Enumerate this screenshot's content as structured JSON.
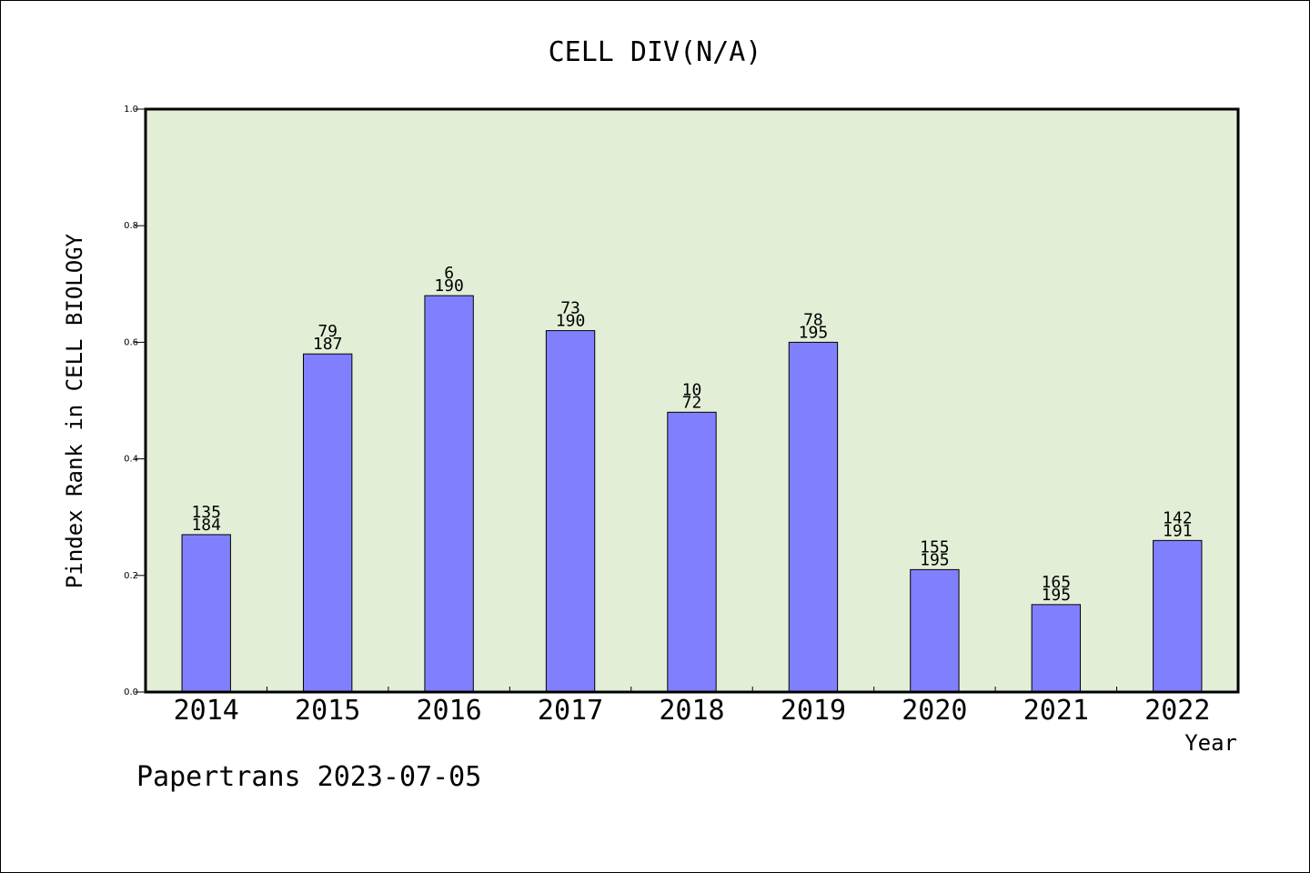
{
  "chart_data": {
    "type": "bar",
    "title": "CELL DIV(N/A)",
    "xlabel": "Year",
    "ylabel": "Pindex Rank in CELL BIOLOGY",
    "categories": [
      "2014",
      "2015",
      "2016",
      "2017",
      "2018",
      "2019",
      "2020",
      "2021",
      "2022"
    ],
    "values": [
      0.27,
      0.58,
      0.68,
      0.62,
      0.48,
      0.6,
      0.21,
      0.15,
      0.26
    ],
    "label_top": [
      "135",
      "79",
      "6",
      "73",
      "10",
      "78",
      "155",
      "165",
      "142"
    ],
    "label_bottom": [
      "184",
      "187",
      "190",
      "190",
      "72",
      "195",
      "195",
      "195",
      "191"
    ],
    "ylim": [
      0,
      1.0
    ],
    "yticks": [
      "0.0",
      "0.2",
      "0.4",
      "0.6",
      "0.8",
      "1.0"
    ],
    "grid": false,
    "legend": "none",
    "colors": {
      "plot_background": "#e2efd6",
      "bar_fill": "#8080ff",
      "bar_stroke": "#000000"
    }
  },
  "footer": "Papertrans 2023-07-05"
}
